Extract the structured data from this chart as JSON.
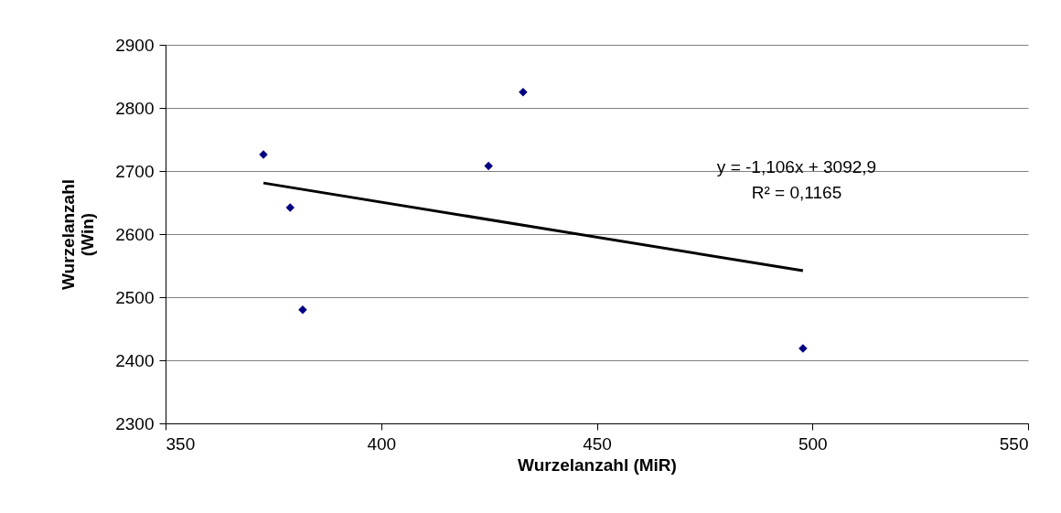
{
  "chart_data": {
    "type": "scatter",
    "xlabel": "Wurzelanzahl (MiR)",
    "ylabel": "Wurzelanzahl (Win)",
    "xlim": [
      350,
      550
    ],
    "xticks": [
      350,
      400,
      450,
      500,
      550
    ],
    "ylim": [
      2300,
      2900
    ],
    "yticks": [
      2300,
      2400,
      2500,
      2600,
      2700,
      2800,
      2900
    ],
    "grid": "y",
    "series": [
      {
        "color": "#000080",
        "marker": "diamond",
        "x": [
          372.7,
          378.9,
          381.8,
          424.9,
          432.9,
          497.8
        ],
        "values": [
          2726,
          2642,
          2480,
          2708,
          2825,
          2419
        ]
      },
      {
        "type": "line",
        "color": "#000000",
        "x": [
          372.7,
          497.8
        ],
        "values": [
          2681,
          2542
        ],
        "line_style": "solid"
      }
    ],
    "annotations": [
      "y = -1,106x + 3092,9",
      "R² = 0,1165"
    ]
  }
}
